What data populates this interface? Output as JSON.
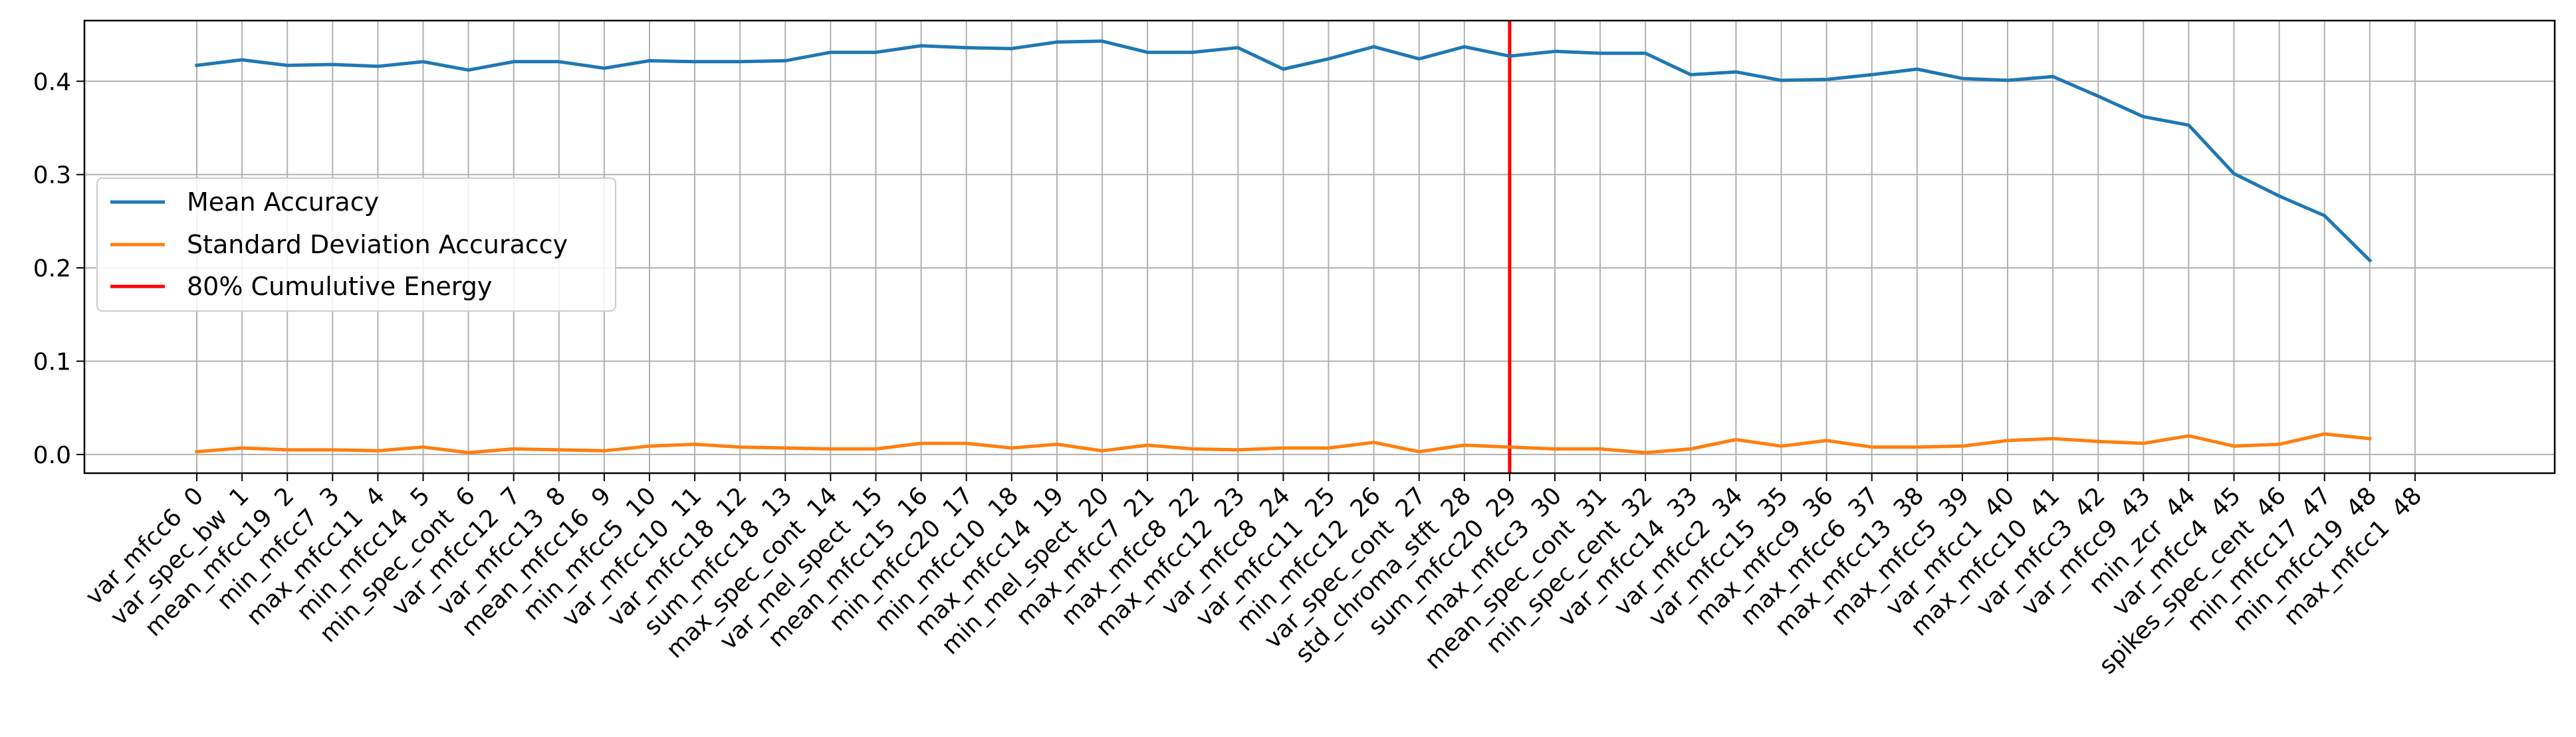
{
  "chart_data": {
    "type": "line",
    "title": "",
    "xlabel": "",
    "ylabel": "",
    "categories": [
      "var_mfcc6  0",
      "var_spec_bw  1",
      "mean_mfcc19  2",
      "min_mfcc7  3",
      "max_mfcc11  4",
      "min_mfcc14  5",
      "min_spec_cont  6",
      "var_mfcc12  7",
      "var_mfcc13  8",
      "mean_mfcc16  9",
      "min_mfcc5  10",
      "var_mfcc10  11",
      "var_mfcc18  12",
      "sum_mfcc18  13",
      "max_spec_cont  14",
      "var_mel_spect  15",
      "mean_mfcc15  16",
      "min_mfcc20  17",
      "min_mfcc10  18",
      "max_mfcc14  19",
      "min_mel_spect  20",
      "max_mfcc7  21",
      "max_mfcc8  22",
      "max_mfcc12  23",
      "var_mfcc8  24",
      "var_mfcc11  25",
      "min_mfcc12  26",
      "var_spec_cont  27",
      "std_chroma_stft  28",
      "sum_mfcc20  29",
      "max_mfcc3  30",
      "mean_spec_cont  31",
      "min_spec_cent  32",
      "var_mfcc14  33",
      "var_mfcc2  34",
      "var_mfcc15  35",
      "max_mfcc9  36",
      "max_mfcc6  37",
      "max_mfcc13  38",
      "max_mfcc5  39",
      "var_mfcc1  40",
      "max_mfcc10  41",
      "var_mfcc3  42",
      "var_mfcc9  43",
      "min_zcr  44",
      "var_mfcc4  45",
      "spikes_spec_cent  46",
      "min_mfcc17  47",
      "min_mfcc19  48",
      "max_mfcc1  48"
    ],
    "series": [
      {
        "name": "Mean Accuracy",
        "color": "#1f77b4",
        "values": [
          0.417,
          0.423,
          0.417,
          0.418,
          0.416,
          0.421,
          0.412,
          0.421,
          0.421,
          0.414,
          0.422,
          0.421,
          0.421,
          0.422,
          0.431,
          0.431,
          0.438,
          0.436,
          0.435,
          0.442,
          0.443,
          0.431,
          0.431,
          0.436,
          0.413,
          0.424,
          0.437,
          0.424,
          0.437,
          0.427,
          0.432,
          0.43,
          0.43,
          0.407,
          0.41,
          0.401,
          0.402,
          0.407,
          0.413,
          0.403,
          0.401,
          0.405,
          0.384,
          0.362,
          0.353,
          0.301,
          0.277,
          0.256,
          0.208,
          null
        ]
      },
      {
        "name": "Standard Deviation Accuraccy",
        "color": "#ff7f0e",
        "values": [
          0.003,
          0.007,
          0.005,
          0.005,
          0.004,
          0.008,
          0.002,
          0.006,
          0.005,
          0.004,
          0.009,
          0.011,
          0.008,
          0.007,
          0.006,
          0.006,
          0.012,
          0.012,
          0.007,
          0.011,
          0.004,
          0.01,
          0.006,
          0.005,
          0.007,
          0.007,
          0.013,
          0.003,
          0.01,
          0.008,
          0.006,
          0.006,
          0.002,
          0.006,
          0.016,
          0.009,
          0.015,
          0.008,
          0.008,
          0.009,
          0.015,
          0.017,
          0.014,
          0.012,
          0.02,
          0.009,
          0.011,
          0.022,
          0.017,
          null
        ]
      }
    ],
    "vline": {
      "name": "80% Cumulutive Energy",
      "color": "#ff0000",
      "x_index": 29
    },
    "ylim": [
      -0.02,
      0.465
    ],
    "yticks": [
      0.0,
      0.1,
      0.2,
      0.3,
      0.4
    ],
    "ytick_labels": [
      "0.0",
      "0.1",
      "0.2",
      "0.3",
      "0.4"
    ],
    "grid": true,
    "legend_position": "center-left"
  }
}
